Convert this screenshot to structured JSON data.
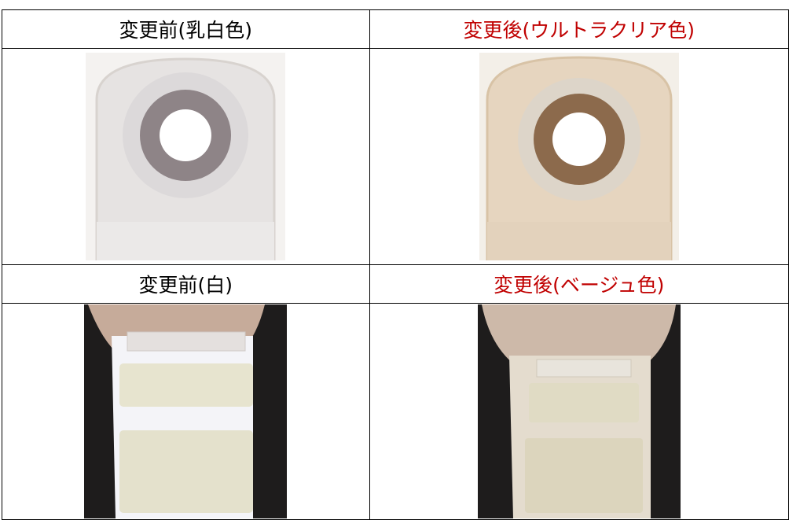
{
  "table": {
    "rows": [
      [
        "変更前(乳白色)",
        "変更後(ウルトラクリア色)"
      ],
      [
        "変更前(白)",
        "変更後(ベージュ色)"
      ]
    ]
  }
}
